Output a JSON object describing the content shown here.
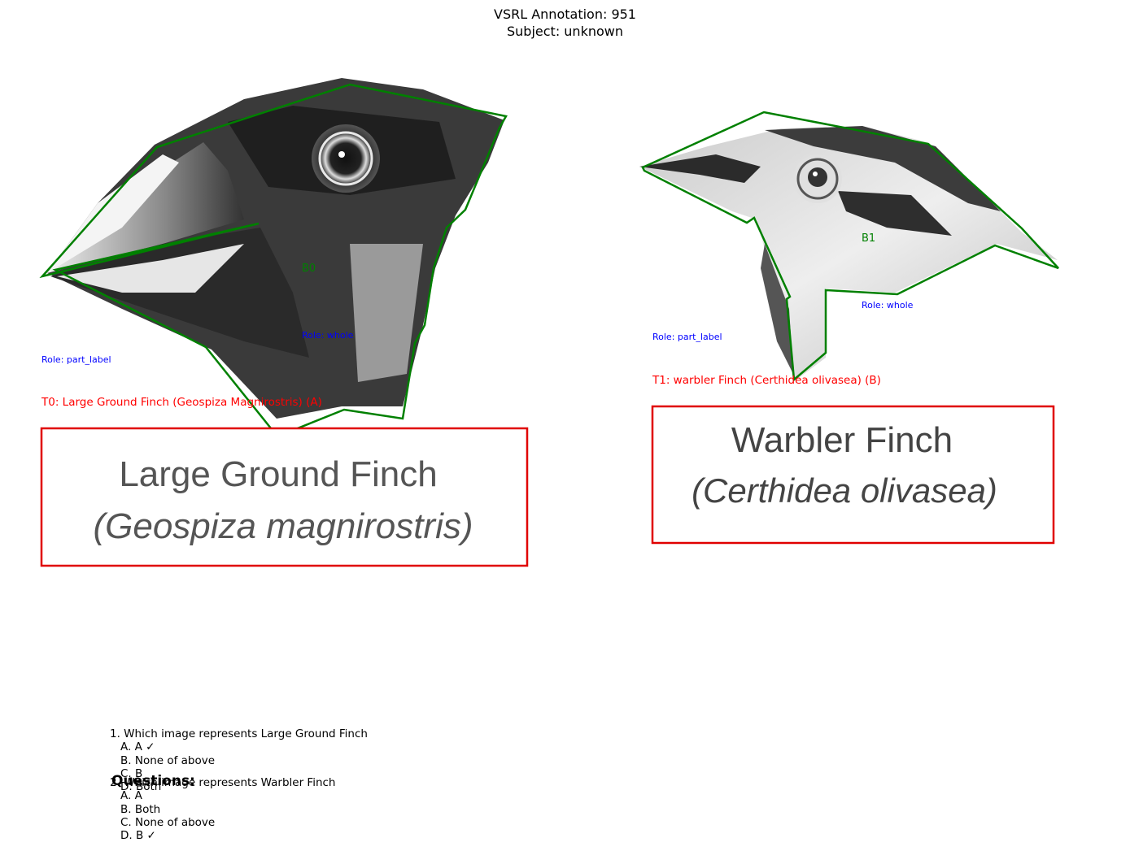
{
  "header": {
    "line1": "VSRL Annotation: 951",
    "line2": "Subject: unknown"
  },
  "images": [
    {
      "region_label": "B0",
      "role_whole": "Role: whole",
      "role_part": "Role: part_label",
      "text_label": "T0: Large Ground Finch (Geospiza Magnirostris) (A)",
      "caption_line1": "Large Ground Finch",
      "caption_line2": "(Geospiza magnirostris)"
    },
    {
      "region_label": "B1",
      "role_whole": "Role: whole",
      "role_part": "Role: part_label",
      "text_label": "T1: warbler Finch (Certhidea olivasea) (B)",
      "caption_line1": "Warbler Finch",
      "caption_line2": "(Certhidea olivasea)"
    }
  ],
  "questions": {
    "heading": "Questions:",
    "items": [
      {
        "text": "1. Which image represents Large Ground Finch",
        "options": [
          "A. A ✓",
          "B. None of above",
          "C. B",
          "D. Both"
        ]
      },
      {
        "text": "2. Which image represents Warbler Finch",
        "options": [
          "A. A",
          "B. Both",
          "C. None of above",
          "D. B ✓"
        ]
      }
    ]
  },
  "colors": {
    "region_outline": "#008000",
    "text_box": "#ff0000",
    "role_text": "#0000ff"
  }
}
